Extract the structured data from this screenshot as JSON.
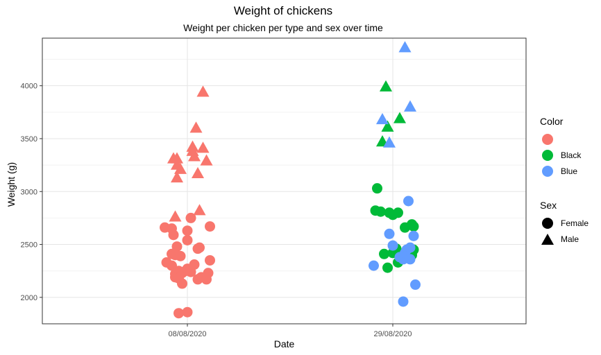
{
  "chart_data": {
    "type": "scatter",
    "title": "Weight of chickens",
    "subtitle": "Weight per chicken per type and sex over time",
    "xlabel": "Date",
    "ylabel": "Weight (g)",
    "categories": [
      "08/08/2020",
      "29/08/2020"
    ],
    "ylim": [
      1750,
      4450
    ],
    "yticks": [
      2000,
      2500,
      3000,
      3500,
      4000
    ],
    "grid": true,
    "legend_position": "right",
    "legend": {
      "color_title": "Color",
      "color_items": [
        {
          "label": "",
          "color": "#F8766D"
        },
        {
          "label": "Black",
          "color": "#00BA38"
        },
        {
          "label": "Blue",
          "color": "#619CFF"
        }
      ],
      "sex_title": "Sex",
      "sex_items": [
        {
          "label": "Female",
          "shape": "circle"
        },
        {
          "label": "Male",
          "shape": "triangle"
        }
      ]
    },
    "series": [
      {
        "color": "#F8766D",
        "shape": "circle",
        "category": "08/08/2020",
        "points": [
          [
            -0.13,
            2660
          ],
          [
            -0.09,
            2650
          ],
          [
            -0.08,
            2590
          ],
          [
            -0.06,
            2480
          ],
          [
            -0.09,
            2410
          ],
          [
            -0.07,
            2400
          ],
          [
            -0.04,
            2390
          ],
          [
            -0.12,
            2330
          ],
          [
            -0.09,
            2300
          ],
          [
            -0.05,
            2250
          ],
          [
            -0.07,
            2220
          ],
          [
            -0.03,
            2230
          ],
          [
            -0.07,
            2190
          ],
          [
            -0.05,
            2180
          ],
          [
            -0.03,
            2130
          ],
          [
            -0.01,
            2250
          ],
          [
            0.0,
            2270
          ],
          [
            0.02,
            2240
          ],
          [
            0.04,
            2310
          ],
          [
            0.0,
            2540
          ],
          [
            0.0,
            2630
          ],
          [
            0.02,
            2750
          ],
          [
            0.06,
            2460
          ],
          [
            0.07,
            2470
          ],
          [
            0.06,
            2170
          ],
          [
            0.08,
            2190
          ],
          [
            0.11,
            2170
          ],
          [
            0.12,
            2230
          ],
          [
            0.13,
            2350
          ],
          [
            0.13,
            2670
          ],
          [
            -0.05,
            1850
          ],
          [
            0.0,
            1860
          ]
        ]
      },
      {
        "color": "#F8766D",
        "shape": "triangle",
        "category": "08/08/2020",
        "points": [
          [
            -0.08,
            3310
          ],
          [
            -0.06,
            3310
          ],
          [
            -0.06,
            3250
          ],
          [
            -0.04,
            3210
          ],
          [
            -0.06,
            3130
          ],
          [
            -0.07,
            2760
          ],
          [
            0.03,
            3420
          ],
          [
            0.03,
            3380
          ],
          [
            0.04,
            3330
          ],
          [
            0.05,
            3600
          ],
          [
            0.06,
            3170
          ],
          [
            0.07,
            2820
          ],
          [
            0.09,
            3410
          ],
          [
            0.11,
            3290
          ],
          [
            0.09,
            3940
          ]
        ]
      },
      {
        "color": "#00BA38",
        "shape": "circle",
        "category": "29/08/2020",
        "points": [
          [
            -0.09,
            3030
          ],
          [
            -0.1,
            2820
          ],
          [
            -0.07,
            2810
          ],
          [
            -0.02,
            2800
          ],
          [
            0.0,
            2780
          ],
          [
            0.03,
            2800
          ],
          [
            -0.05,
            2410
          ],
          [
            -0.03,
            2280
          ],
          [
            0.0,
            2420
          ],
          [
            0.02,
            2460
          ],
          [
            0.03,
            2330
          ],
          [
            0.07,
            2660
          ],
          [
            0.11,
            2690
          ],
          [
            0.12,
            2670
          ],
          [
            0.11,
            2400
          ],
          [
            0.12,
            2450
          ]
        ]
      },
      {
        "color": "#00BA38",
        "shape": "triangle",
        "category": "29/08/2020",
        "points": [
          [
            -0.04,
            3990
          ],
          [
            -0.03,
            3610
          ],
          [
            -0.06,
            3470
          ],
          [
            0.04,
            3690
          ]
        ]
      },
      {
        "color": "#619CFF",
        "shape": "circle",
        "category": "29/08/2020",
        "points": [
          [
            -0.11,
            2300
          ],
          [
            -0.02,
            2600
          ],
          [
            0.0,
            2490
          ],
          [
            0.04,
            2380
          ],
          [
            0.06,
            2360
          ],
          [
            0.07,
            2420
          ],
          [
            0.08,
            2450
          ],
          [
            0.1,
            2470
          ],
          [
            0.1,
            2360
          ],
          [
            0.09,
            2910
          ],
          [
            0.12,
            2580
          ],
          [
            0.13,
            2120
          ],
          [
            0.06,
            1960
          ]
        ]
      },
      {
        "color": "#619CFF",
        "shape": "triangle",
        "category": "29/08/2020",
        "points": [
          [
            -0.06,
            3680
          ],
          [
            -0.02,
            3460
          ],
          [
            0.07,
            4360
          ],
          [
            0.1,
            3800
          ]
        ]
      }
    ]
  }
}
